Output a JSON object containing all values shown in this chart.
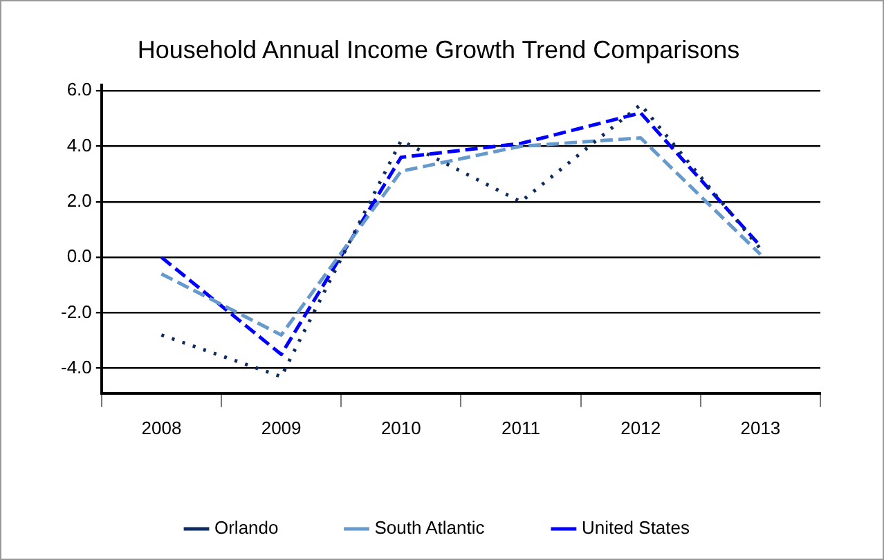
{
  "chart_data": {
    "type": "line",
    "title": "Household Annual Income Growth Trend Comparisons",
    "categories": [
      "2008",
      "2009",
      "2010",
      "2011",
      "2012",
      "2013"
    ],
    "series": [
      {
        "name": "Orlando",
        "color": "#0d2b5e",
        "line_style": "dotted",
        "values": [
          -2.8,
          -4.3,
          4.2,
          2.0,
          5.5,
          0.3
        ]
      },
      {
        "name": "South Atlantic",
        "color": "#6699cc",
        "line_style": "dashed",
        "values": [
          -0.6,
          -2.8,
          3.1,
          4.0,
          4.3,
          0.1
        ]
      },
      {
        "name": "United States",
        "color": "#0000ff",
        "line_style": "dashed",
        "values": [
          0.0,
          -3.5,
          3.6,
          4.1,
          5.2,
          0.4
        ]
      }
    ],
    "ylim": [
      -4.9,
      6.2
    ],
    "yticks": [
      {
        "value": -4,
        "label": "-4.0"
      },
      {
        "value": -2,
        "label": "-2.0"
      },
      {
        "value": 0,
        "label": "0.0"
      },
      {
        "value": 2,
        "label": "2.0"
      },
      {
        "value": 4,
        "label": "4.0"
      },
      {
        "value": 6,
        "label": "6.0"
      }
    ],
    "grid": "y",
    "legend": "bottom",
    "marker": "none"
  }
}
